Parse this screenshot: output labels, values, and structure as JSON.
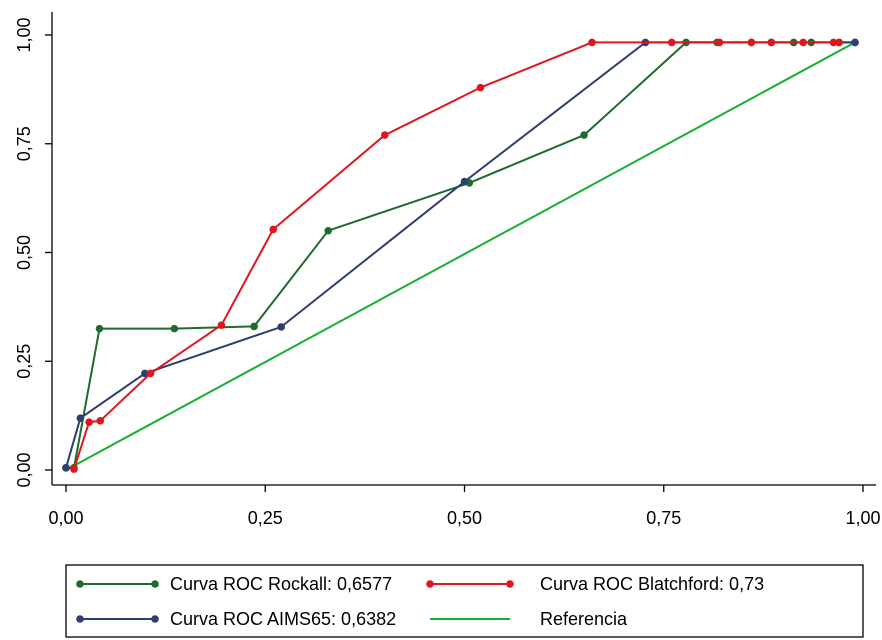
{
  "chart_data": {
    "type": "line",
    "xlim": [
      0,
      1
    ],
    "ylim": [
      0,
      1
    ],
    "x_ticks": [
      "0,00",
      "0,25",
      "0,50",
      "0,75",
      "1,00"
    ],
    "y_ticks": [
      "0,00",
      "0,25",
      "0,50",
      "0,75",
      "1,00"
    ],
    "grid": false,
    "legend_position": "bottom",
    "series": [
      {
        "name": "Curva ROC Rockall: 0,6577",
        "color": "#1e6b2e",
        "markers": true,
        "points": [
          [
            0.0,
            0.005
          ],
          [
            0.01,
            0.005
          ],
          [
            0.042,
            0.325
          ],
          [
            0.136,
            0.325
          ],
          [
            0.236,
            0.33
          ],
          [
            0.329,
            0.55
          ],
          [
            0.506,
            0.66
          ],
          [
            0.65,
            0.77
          ],
          [
            0.778,
            0.983
          ],
          [
            0.817,
            0.983
          ],
          [
            0.86,
            0.983
          ],
          [
            0.885,
            0.983
          ],
          [
            0.913,
            0.983
          ],
          [
            0.935,
            0.983
          ],
          [
            0.97,
            0.983
          ],
          [
            0.99,
            0.983
          ]
        ]
      },
      {
        "name": "Curva ROC Blatchford: 0,73",
        "color": "#e0161e",
        "markers": true,
        "points": [
          [
            0.01,
            0.002
          ],
          [
            0.029,
            0.11
          ],
          [
            0.043,
            0.113
          ],
          [
            0.106,
            0.222
          ],
          [
            0.195,
            0.333
          ],
          [
            0.26,
            0.553
          ],
          [
            0.4,
            0.77
          ],
          [
            0.52,
            0.879
          ],
          [
            0.66,
            0.983
          ],
          [
            0.76,
            0.983
          ],
          [
            0.82,
            0.983
          ],
          [
            0.86,
            0.983
          ],
          [
            0.885,
            0.983
          ],
          [
            0.925,
            0.983
          ],
          [
            0.963,
            0.983
          ],
          [
            0.97,
            0.983
          ]
        ]
      },
      {
        "name": "Curva ROC AIMS65: 0,6382",
        "color": "#2d3f6e",
        "markers": true,
        "points": [
          [
            0.0,
            0.005
          ],
          [
            0.018,
            0.119
          ],
          [
            0.099,
            0.222
          ],
          [
            0.27,
            0.329
          ],
          [
            0.5,
            0.663
          ],
          [
            0.727,
            0.983
          ],
          [
            0.99,
            0.983
          ]
        ]
      },
      {
        "name": "Referencia",
        "color": "#16b02e",
        "markers": false,
        "points": [
          [
            0.0,
            0.0
          ],
          [
            0.99,
            0.983
          ]
        ]
      }
    ]
  }
}
